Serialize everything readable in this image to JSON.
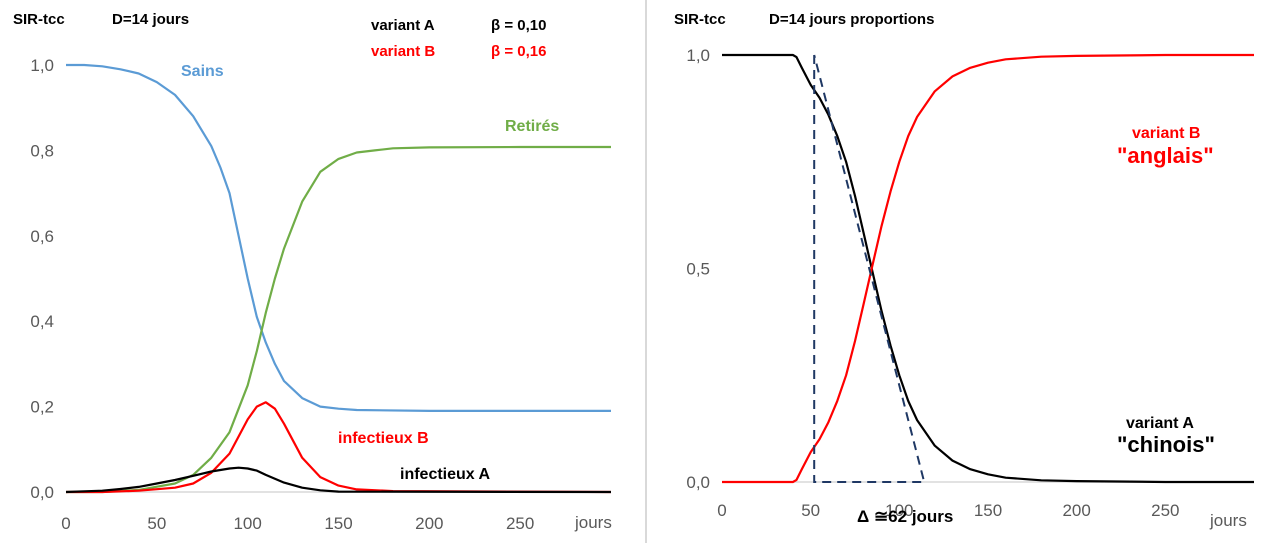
{
  "chart_data": [
    {
      "type": "line",
      "header": {
        "model": "SIR-tcc",
        "duration": "D=14  jours"
      },
      "legend_params": [
        {
          "variant": "variant  A",
          "beta": "β = 0,10",
          "color": "#000000"
        },
        {
          "variant": "variant B",
          "beta": "β = 0,16",
          "color": "#ff0000"
        }
      ],
      "xlabel": "jours",
      "xlim": [
        0,
        300
      ],
      "ylim": [
        0,
        1.0
      ],
      "xticks": [
        "0",
        "50",
        "100",
        "150",
        "200",
        "250"
      ],
      "yticks": [
        "0,0",
        "0,2",
        "0,4",
        "0,6",
        "0,8",
        "1,0"
      ],
      "series": [
        {
          "name": "Sains",
          "color": "#5b9bd5",
          "x": [
            0,
            10,
            20,
            30,
            40,
            50,
            60,
            70,
            80,
            85,
            90,
            95,
            100,
            105,
            110,
            115,
            120,
            130,
            140,
            150,
            160,
            200,
            250,
            300
          ],
          "y": [
            1.0,
            1.0,
            0.997,
            0.99,
            0.98,
            0.96,
            0.93,
            0.88,
            0.81,
            0.76,
            0.7,
            0.6,
            0.5,
            0.41,
            0.35,
            0.3,
            0.26,
            0.22,
            0.2,
            0.195,
            0.192,
            0.19,
            0.19,
            0.19
          ]
        },
        {
          "name": "Retirés",
          "color": "#70ad47",
          "x": [
            0,
            20,
            40,
            60,
            70,
            80,
            90,
            100,
            105,
            110,
            115,
            120,
            130,
            140,
            150,
            160,
            170,
            180,
            200,
            250,
            300
          ],
          "y": [
            0,
            0,
            0.005,
            0.02,
            0.04,
            0.08,
            0.14,
            0.25,
            0.33,
            0.42,
            0.5,
            0.57,
            0.68,
            0.75,
            0.78,
            0.795,
            0.8,
            0.805,
            0.807,
            0.808,
            0.808
          ]
        },
        {
          "name": "infectieux  B",
          "color": "#ff0000",
          "x": [
            0,
            20,
            40,
            60,
            70,
            80,
            90,
            95,
            100,
            105,
            110,
            115,
            120,
            130,
            140,
            150,
            160,
            180,
            300
          ],
          "y": [
            0,
            0,
            0.003,
            0.01,
            0.02,
            0.045,
            0.09,
            0.13,
            0.17,
            0.2,
            0.21,
            0.195,
            0.16,
            0.08,
            0.035,
            0.015,
            0.006,
            0.002,
            0
          ]
        },
        {
          "name": "infectieux  A",
          "color": "#000000",
          "x": [
            0,
            20,
            30,
            40,
            50,
            60,
            70,
            80,
            90,
            95,
            100,
            105,
            110,
            120,
            130,
            140,
            150,
            300
          ],
          "y": [
            0,
            0.003,
            0.007,
            0.012,
            0.02,
            0.028,
            0.038,
            0.048,
            0.055,
            0.057,
            0.055,
            0.05,
            0.04,
            0.022,
            0.01,
            0.004,
            0.001,
            0
          ]
        }
      ]
    },
    {
      "type": "line",
      "header": {
        "model": "SIR-tcc",
        "duration": "D=14  jours   proportions"
      },
      "xlabel": "jours",
      "xlim": [
        0,
        300
      ],
      "ylim": [
        0,
        1.0
      ],
      "xticks": [
        "0",
        "50",
        "100",
        "150",
        "200",
        "250"
      ],
      "yticks": [
        "0,0",
        "0,5",
        "1,0"
      ],
      "delta_label": "Δ ≅62   jours",
      "series": [
        {
          "name": "variant A",
          "nickname": "\"chinois\"",
          "color": "#000000",
          "x": [
            0,
            20,
            40,
            42,
            45,
            50,
            55,
            60,
            65,
            70,
            75,
            80,
            85,
            90,
            95,
            100,
            105,
            110,
            120,
            130,
            140,
            150,
            160,
            180,
            200,
            250,
            300
          ],
          "y": [
            1.0,
            1.0,
            1.0,
            0.995,
            0.97,
            0.93,
            0.9,
            0.86,
            0.81,
            0.75,
            0.67,
            0.58,
            0.49,
            0.4,
            0.32,
            0.25,
            0.19,
            0.145,
            0.085,
            0.05,
            0.03,
            0.018,
            0.01,
            0.004,
            0.002,
            0.0,
            0.0
          ]
        },
        {
          "name": "variant B",
          "nickname": "\"anglais\"",
          "color": "#ff0000",
          "x": [
            0,
            20,
            40,
            42,
            45,
            50,
            55,
            60,
            65,
            70,
            75,
            80,
            85,
            90,
            95,
            100,
            105,
            110,
            120,
            130,
            140,
            150,
            160,
            180,
            200,
            250,
            300
          ],
          "y": [
            0.0,
            0.0,
            0.0,
            0.005,
            0.03,
            0.07,
            0.1,
            0.14,
            0.19,
            0.25,
            0.33,
            0.42,
            0.51,
            0.6,
            0.68,
            0.75,
            0.81,
            0.855,
            0.915,
            0.95,
            0.97,
            0.982,
            0.99,
            0.996,
            0.998,
            1.0,
            1.0
          ]
        }
      ],
      "tangent": {
        "color": "#1f3864",
        "x": [
          52,
          52,
          114,
          52
        ],
        "y": [
          1.0,
          0.0,
          0.0,
          1.0
        ]
      }
    }
  ]
}
